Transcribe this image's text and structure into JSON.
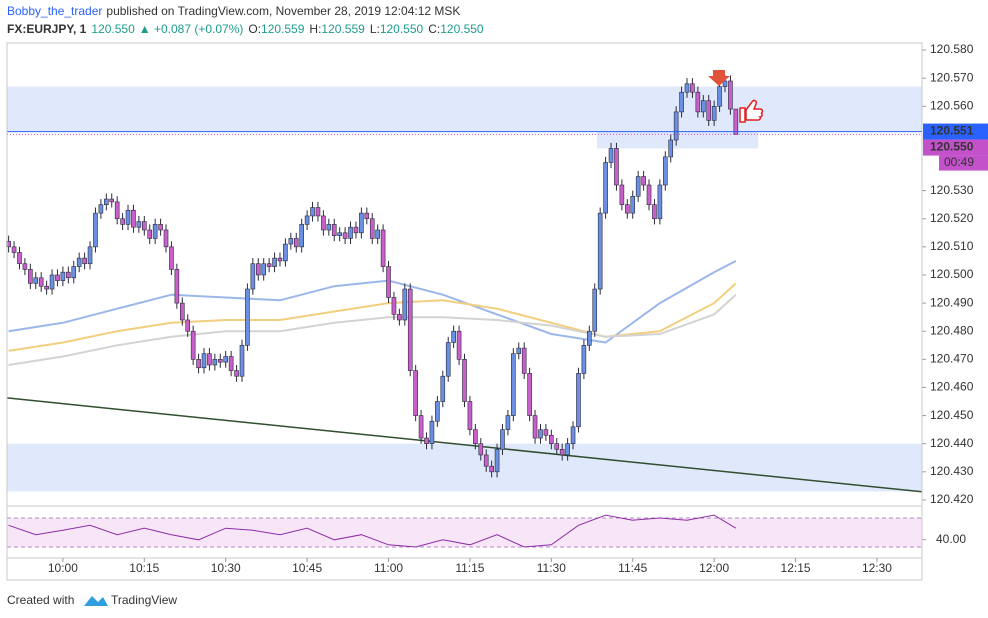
{
  "chart_data": {
    "type": "candlestick",
    "header": {
      "author": "Bobby_the_trader",
      "published": "published on TradingView.com, November 28, 2019 12:04:12 MSK",
      "symbol": "FX:EURJPY, 1",
      "last": "120.550",
      "change": "▲ +0.087 (+0.07%)",
      "ohlc": [
        {
          "label": "O:",
          "value": "120.559"
        },
        {
          "label": "H:",
          "value": "120.559"
        },
        {
          "label": "L:",
          "value": "120.550"
        },
        {
          "label": "C:",
          "value": "120.550"
        }
      ]
    },
    "footer": {
      "created": "Created with",
      "brand": "TradingView"
    },
    "xlim": [
      589.7,
      758.3
    ],
    "xticks": [
      {
        "value": 600,
        "label": "10:00"
      },
      {
        "value": 615,
        "label": "10:15"
      },
      {
        "value": 630,
        "label": "10:30"
      },
      {
        "value": 645,
        "label": "10:45"
      },
      {
        "value": 660,
        "label": "11:00"
      },
      {
        "value": 675,
        "label": "11:15"
      },
      {
        "value": 690,
        "label": "11:30"
      },
      {
        "value": 705,
        "label": "11:45"
      },
      {
        "value": 720,
        "label": "12:00"
      },
      {
        "value": 735,
        "label": "12:15"
      },
      {
        "value": 750,
        "label": "12:30"
      }
    ],
    "ylim": [
      120.4182,
      120.5825
    ],
    "yticks": [
      {
        "value": 120.42,
        "label": "120.420"
      },
      {
        "value": 120.43,
        "label": "120.430"
      },
      {
        "value": 120.44,
        "label": "120.440"
      },
      {
        "value": 120.45,
        "label": "120.450"
      },
      {
        "value": 120.46,
        "label": "120.460"
      },
      {
        "value": 120.47,
        "label": "120.470"
      },
      {
        "value": 120.48,
        "label": "120.480"
      },
      {
        "value": 120.49,
        "label": "120.490"
      },
      {
        "value": 120.5,
        "label": "120.500"
      },
      {
        "value": 120.51,
        "label": "120.510"
      },
      {
        "value": 120.52,
        "label": "120.520"
      },
      {
        "value": 120.53,
        "label": "120.530"
      },
      {
        "value": 120.56,
        "label": "120.560"
      },
      {
        "value": 120.57,
        "label": "120.570"
      },
      {
        "value": 120.58,
        "label": "120.580"
      }
    ],
    "candles": {
      "up_color": "#6b8fe3",
      "down_color": "#c95fcb",
      "x": [
        590,
        591,
        592,
        593,
        594,
        595,
        596,
        597,
        598,
        599,
        600,
        601,
        602,
        603,
        604,
        605,
        606,
        607,
        608,
        609,
        610,
        611,
        612,
        613,
        614,
        615,
        616,
        617,
        618,
        619,
        620,
        621,
        622,
        623,
        624,
        625,
        626,
        627,
        628,
        629,
        630,
        631,
        632,
        633,
        634,
        635,
        636,
        637,
        638,
        639,
        640,
        641,
        642,
        643,
        644,
        645,
        646,
        647,
        648,
        649,
        650,
        651,
        652,
        653,
        654,
        655,
        656,
        657,
        658,
        659,
        660,
        661,
        662,
        663,
        664,
        665,
        666,
        667,
        668,
        669,
        670,
        671,
        672,
        673,
        674,
        675,
        676,
        677,
        678,
        679,
        680,
        681,
        682,
        683,
        684,
        685,
        686,
        687,
        688,
        689,
        690,
        691,
        692,
        693,
        694,
        695,
        696,
        697,
        698,
        699,
        700,
        701,
        702,
        703,
        704,
        705,
        706,
        707,
        708,
        709,
        710,
        711,
        712,
        713,
        714,
        715,
        716,
        717,
        718,
        719,
        720,
        721,
        722,
        723,
        724
      ],
      "open": [
        120.512,
        120.51,
        120.508,
        120.504,
        120.502,
        120.497,
        120.499,
        120.496,
        120.495,
        120.5,
        120.498,
        120.501,
        120.499,
        120.503,
        120.506,
        120.504,
        120.51,
        120.522,
        120.525,
        120.527,
        120.526,
        120.52,
        120.518,
        120.523,
        120.517,
        120.519,
        120.516,
        120.513,
        120.518,
        120.516,
        120.51,
        120.502,
        120.49,
        120.484,
        120.48,
        120.47,
        120.467,
        120.472,
        120.468,
        120.47,
        120.469,
        120.471,
        120.466,
        120.464,
        120.475,
        120.495,
        120.504,
        120.5,
        120.504,
        120.503,
        120.506,
        120.505,
        120.511,
        120.513,
        120.51,
        120.518,
        120.521,
        120.524,
        120.521,
        120.516,
        120.518,
        120.514,
        120.515,
        120.513,
        120.517,
        120.515,
        120.522,
        120.52,
        120.513,
        120.516,
        120.503,
        120.492,
        120.486,
        120.484,
        120.495,
        120.466,
        120.45,
        120.442,
        120.44,
        120.448,
        120.455,
        120.464,
        120.476,
        120.48,
        120.47,
        120.455,
        120.445,
        120.44,
        120.436,
        120.432,
        120.43,
        120.438,
        120.445,
        120.45,
        120.472,
        120.474,
        120.465,
        120.45,
        120.442,
        120.445,
        120.443,
        120.44,
        120.438,
        120.436,
        120.44,
        120.446,
        120.465,
        120.475,
        120.48,
        120.495,
        120.522,
        120.54,
        120.545,
        120.532,
        120.525,
        120.522,
        120.528,
        120.535,
        120.532,
        120.525,
        120.52,
        120.532,
        120.542,
        120.548,
        120.558,
        120.565,
        120.568,
        120.565,
        120.558,
        120.562,
        120.555,
        120.56,
        120.567,
        120.569,
        120.559
      ],
      "high": [
        120.514,
        120.512,
        120.51,
        120.506,
        120.504,
        120.501,
        120.501,
        120.498,
        120.502,
        120.502,
        120.503,
        120.503,
        120.505,
        120.508,
        120.508,
        120.512,
        120.524,
        120.527,
        120.529,
        120.529,
        120.528,
        120.522,
        120.525,
        120.525,
        120.521,
        120.521,
        120.518,
        120.52,
        120.52,
        120.518,
        120.512,
        120.504,
        120.492,
        120.486,
        120.482,
        120.472,
        120.474,
        120.474,
        120.472,
        120.472,
        120.473,
        120.473,
        120.468,
        120.477,
        120.497,
        120.506,
        120.506,
        120.506,
        120.506,
        120.508,
        120.508,
        120.513,
        120.515,
        120.515,
        120.52,
        120.523,
        120.526,
        120.526,
        120.523,
        120.52,
        120.52,
        120.517,
        120.517,
        120.519,
        120.519,
        120.524,
        120.524,
        120.522,
        120.518,
        120.518,
        120.505,
        120.494,
        120.488,
        120.497,
        120.497,
        120.468,
        120.452,
        120.444,
        120.45,
        120.457,
        120.466,
        120.478,
        120.482,
        120.482,
        120.472,
        120.457,
        120.447,
        120.442,
        120.438,
        120.434,
        120.44,
        120.447,
        120.452,
        120.474,
        120.476,
        120.476,
        120.467,
        120.452,
        120.447,
        120.447,
        120.445,
        120.442,
        120.44,
        120.442,
        120.448,
        120.467,
        120.477,
        120.482,
        120.497,
        120.524,
        120.542,
        120.547,
        120.547,
        120.534,
        120.527,
        120.53,
        120.537,
        120.537,
        120.534,
        120.527,
        120.534,
        120.544,
        120.55,
        120.56,
        120.567,
        120.57,
        120.57,
        120.567,
        120.564,
        120.564,
        120.562,
        120.569,
        120.571,
        120.571,
        120.559
      ],
      "low": [
        120.508,
        120.506,
        120.502,
        120.5,
        120.495,
        120.495,
        120.494,
        120.493,
        120.493,
        120.496,
        120.496,
        120.497,
        120.497,
        120.501,
        120.502,
        120.502,
        120.508,
        120.52,
        120.523,
        120.524,
        120.518,
        120.516,
        120.516,
        120.515,
        120.515,
        120.514,
        120.511,
        120.511,
        120.514,
        120.508,
        120.5,
        120.488,
        120.482,
        120.478,
        120.468,
        120.465,
        120.465,
        120.466,
        120.466,
        120.467,
        120.467,
        120.464,
        120.462,
        120.462,
        120.473,
        120.493,
        120.498,
        120.498,
        120.501,
        120.501,
        120.503,
        120.503,
        120.509,
        120.508,
        120.508,
        120.516,
        120.519,
        120.519,
        120.514,
        120.514,
        120.512,
        120.512,
        120.511,
        120.511,
        120.513,
        120.513,
        120.518,
        120.511,
        120.511,
        120.501,
        120.49,
        120.484,
        120.482,
        120.482,
        120.464,
        120.448,
        120.44,
        120.438,
        120.438,
        120.446,
        120.453,
        120.462,
        120.474,
        120.468,
        120.453,
        120.443,
        120.438,
        120.434,
        120.43,
        120.428,
        120.428,
        120.436,
        120.443,
        120.448,
        120.47,
        120.463,
        120.448,
        120.44,
        120.44,
        120.441,
        120.438,
        120.436,
        120.434,
        120.434,
        120.438,
        120.444,
        120.463,
        120.473,
        120.478,
        120.493,
        120.52,
        120.538,
        120.53,
        120.523,
        120.52,
        120.52,
        120.526,
        120.53,
        120.523,
        120.518,
        120.518,
        120.53,
        120.54,
        120.546,
        120.556,
        120.563,
        120.563,
        120.556,
        120.556,
        120.553,
        120.553,
        120.558,
        120.565,
        120.557,
        120.55
      ],
      "close": [
        120.51,
        120.508,
        120.504,
        120.502,
        120.497,
        120.499,
        120.496,
        120.495,
        120.5,
        120.498,
        120.501,
        120.499,
        120.503,
        120.506,
        120.504,
        120.51,
        120.522,
        120.525,
        120.527,
        120.526,
        120.52,
        120.518,
        120.523,
        120.517,
        120.519,
        120.516,
        120.513,
        120.518,
        120.516,
        120.51,
        120.502,
        120.49,
        120.484,
        120.48,
        120.47,
        120.467,
        120.472,
        120.468,
        120.47,
        120.469,
        120.471,
        120.466,
        120.464,
        120.475,
        120.495,
        120.504,
        120.5,
        120.504,
        120.503,
        120.506,
        120.505,
        120.511,
        120.513,
        120.51,
        120.518,
        120.521,
        120.524,
        120.521,
        120.516,
        120.518,
        120.514,
        120.515,
        120.513,
        120.517,
        120.515,
        120.522,
        120.52,
        120.513,
        120.516,
        120.503,
        120.492,
        120.486,
        120.484,
        120.495,
        120.466,
        120.45,
        120.442,
        120.44,
        120.448,
        120.455,
        120.464,
        120.476,
        120.48,
        120.47,
        120.455,
        120.445,
        120.44,
        120.436,
        120.432,
        120.43,
        120.438,
        120.445,
        120.45,
        120.472,
        120.474,
        120.465,
        120.45,
        120.442,
        120.445,
        120.443,
        120.44,
        120.438,
        120.436,
        120.44,
        120.446,
        120.465,
        120.475,
        120.48,
        120.495,
        120.522,
        120.54,
        120.545,
        120.532,
        120.525,
        120.522,
        120.528,
        120.535,
        120.532,
        120.525,
        120.52,
        120.532,
        120.542,
        120.548,
        120.558,
        120.565,
        120.568,
        120.565,
        120.558,
        120.562,
        120.555,
        120.56,
        120.567,
        120.569,
        120.559,
        120.55
      ]
    },
    "overlays": [
      {
        "color": "#9bb7ea",
        "x": [
          590,
          600,
          610,
          620,
          630,
          640,
          650,
          660,
          670,
          680,
          690,
          700,
          710,
          720,
          724
        ],
        "values": [
          120.48,
          120.483,
          120.488,
          120.493,
          120.492,
          120.491,
          120.496,
          120.498,
          120.493,
          120.486,
          120.479,
          120.476,
          120.49,
          120.501,
          120.505
        ]
      },
      {
        "color": "#f2cf7e",
        "x": [
          590,
          600,
          610,
          620,
          630,
          640,
          650,
          660,
          670,
          680,
          690,
          700,
          710,
          720,
          724
        ],
        "values": [
          120.473,
          120.476,
          120.48,
          120.483,
          120.484,
          120.484,
          120.487,
          120.49,
          120.491,
          120.488,
          120.483,
          120.478,
          120.48,
          120.49,
          120.497
        ]
      },
      {
        "color": "#d3d3d3",
        "x": [
          590,
          600,
          610,
          620,
          630,
          640,
          650,
          660,
          670,
          680,
          690,
          700,
          710,
          720,
          724
        ],
        "values": [
          120.468,
          120.471,
          120.475,
          120.478,
          120.48,
          120.48,
          120.483,
          120.485,
          120.485,
          120.484,
          120.482,
          120.478,
          120.479,
          120.486,
          120.493
        ]
      }
    ],
    "trend_line": {
      "color": "#2f4f2f",
      "x": [
        589.7,
        758.3
      ],
      "values": [
        120.4563,
        120.4229
      ]
    },
    "zones": [
      {
        "color": "#dbe7fb",
        "values": [
          120.551,
          120.567
        ]
      },
      {
        "color": "#dbe7fb",
        "values": [
          120.423,
          120.44
        ]
      },
      {
        "color": "#dbe7fb",
        "x": [
          698.4,
          728.1
        ],
        "values": [
          120.545,
          120.551
        ]
      }
    ],
    "price_labels": [
      {
        "value": 120.551,
        "label": "120.551",
        "color": "#2962ff"
      },
      {
        "value": 120.55,
        "label": "120.550",
        "color": "#c351c9"
      }
    ],
    "countdown": "00:49",
    "rsi": {
      "color": "#8e2da5",
      "band_color": "#f6e6f8",
      "ylim": [
        17.6,
        83.8
      ],
      "yticks": [
        {
          "value": 40,
          "label": "40.00"
        }
      ],
      "levels": [
        70,
        30
      ],
      "x": [
        590,
        595,
        600,
        605,
        610,
        615,
        620,
        625,
        630,
        635,
        640,
        645,
        650,
        655,
        660,
        665,
        670,
        675,
        680,
        685,
        690,
        695,
        700,
        705,
        710,
        715,
        720,
        724
      ],
      "values": [
        60,
        47,
        53,
        60,
        47,
        56,
        47,
        40,
        56,
        53,
        47,
        56,
        40,
        47,
        33,
        30,
        40,
        33,
        47,
        30,
        33,
        60,
        74,
        67,
        70,
        67,
        74,
        56
      ]
    }
  }
}
